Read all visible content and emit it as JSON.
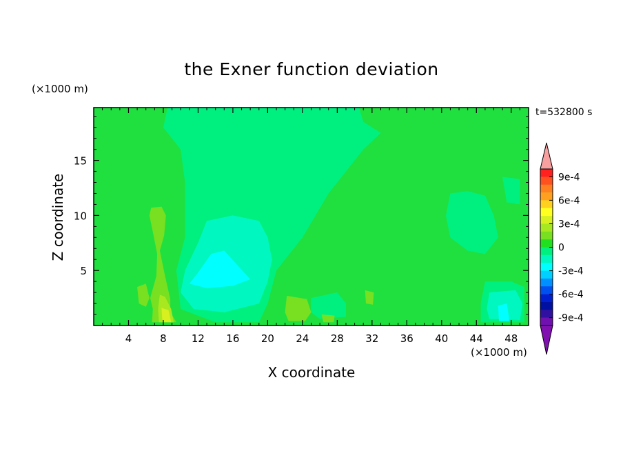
{
  "chart_data": {
    "type": "heatmap",
    "title": "the Exner function deviation",
    "xlabel": "X coordinate",
    "ylabel": "Z coordinate",
    "x_unit": "(×1000 m)",
    "y_unit": "(×1000 m)",
    "time_label": "t=532800 s",
    "xlim": [
      0,
      50
    ],
    "ylim": [
      0,
      19.8
    ],
    "x_ticks": [
      4,
      8,
      12,
      16,
      20,
      24,
      28,
      32,
      36,
      40,
      44,
      48
    ],
    "y_ticks": [
      5,
      10,
      15
    ],
    "colorbar": {
      "tick_labels": [
        "9e-4",
        "6e-4",
        "3e-4",
        "0",
        "-3e-4",
        "-6e-4",
        "-9e-4"
      ],
      "tick_values": [
        0.0009,
        0.0006,
        0.0003,
        0,
        -0.0003,
        -0.0006,
        -0.0009
      ],
      "levels": [
        0.0009,
        0.0008,
        0.0007,
        0.0006,
        0.0005,
        0.0004,
        0.0003,
        0.0002,
        0.0001,
        0,
        -0.0001,
        -0.0002,
        -0.0003,
        -0.0004,
        -0.0005,
        -0.0006,
        -0.0007,
        -0.0008,
        -0.0009
      ],
      "colors": [
        "#ff2020",
        "#ff5020",
        "#ff8020",
        "#ffa020",
        "#ffd020",
        "#ffff20",
        "#d8f020",
        "#a8e820",
        "#78e020",
        "#20e020",
        "#00f080",
        "#00f8c0",
        "#00ffff",
        "#00d0ff",
        "#0090ff",
        "#0050f0",
        "#0020d0",
        "#0010a0",
        "#3010a0",
        "#7010b0"
      ],
      "over_color": "#f8a0a0",
      "under_color": "#8010b0"
    },
    "regions": [
      {
        "level": 0,
        "color": "#20e040",
        "note": "background"
      },
      {
        "level": -0.0001,
        "color": "#00f080",
        "polygon": [
          [
            8.5,
            19.8
          ],
          [
            30.5,
            19.8
          ],
          [
            31,
            18.5
          ],
          [
            33,
            17.5
          ],
          [
            31,
            16
          ],
          [
            27,
            12
          ],
          [
            24,
            8
          ],
          [
            21,
            5
          ],
          [
            20,
            2
          ],
          [
            19,
            0.3
          ],
          [
            14,
            0.3
          ],
          [
            10,
            1.5
          ],
          [
            9.5,
            5
          ],
          [
            10.5,
            8
          ],
          [
            10.5,
            13
          ],
          [
            10,
            16
          ],
          [
            8,
            18
          ]
        ]
      },
      {
        "level": -0.0001,
        "color": "#00f080",
        "polygon": [
          [
            41,
            12
          ],
          [
            43,
            12.2
          ],
          [
            45,
            11.8
          ],
          [
            46,
            10
          ],
          [
            46.5,
            8
          ],
          [
            45,
            6.5
          ],
          [
            43,
            6.8
          ],
          [
            41,
            8
          ],
          [
            40.5,
            10
          ]
        ]
      },
      {
        "level": -0.0001,
        "color": "#00f080",
        "polygon": [
          [
            45,
            4
          ],
          [
            48,
            4
          ],
          [
            49.5,
            3.5
          ],
          [
            49.5,
            0.3
          ],
          [
            44.5,
            0.3
          ],
          [
            44.5,
            2
          ]
        ]
      },
      {
        "level": -0.0001,
        "color": "#00f080",
        "polygon": [
          [
            25,
            2.5
          ],
          [
            28,
            3
          ],
          [
            29,
            2
          ],
          [
            29,
            0.8
          ],
          [
            26,
            0.6
          ],
          [
            25,
            1.2
          ]
        ]
      },
      {
        "level": -0.0001,
        "color": "#00f080",
        "polygon": [
          [
            47,
            13.5
          ],
          [
            49,
            13.3
          ],
          [
            49,
            11
          ],
          [
            47.5,
            11.2
          ]
        ]
      },
      {
        "level": -0.0002,
        "color": "#00f8c0",
        "polygon": [
          [
            13,
            9.5
          ],
          [
            16,
            10
          ],
          [
            19,
            9.5
          ],
          [
            20,
            8
          ],
          [
            20.5,
            6
          ],
          [
            20,
            4
          ],
          [
            19,
            2
          ],
          [
            15,
            1.2
          ],
          [
            11.5,
            1.5
          ],
          [
            10,
            3
          ],
          [
            10.5,
            5
          ],
          [
            12,
            7.5
          ]
        ]
      },
      {
        "level": -0.0002,
        "color": "#00f8c0",
        "polygon": [
          [
            45.5,
            3
          ],
          [
            48.5,
            3.2
          ],
          [
            49.3,
            2
          ],
          [
            49,
            0.5
          ],
          [
            45.5,
            0.6
          ],
          [
            45.2,
            1.5
          ]
        ]
      },
      {
        "level": -0.0003,
        "color": "#00ffff",
        "polygon": [
          [
            13.5,
            6.5
          ],
          [
            15,
            6.8
          ],
          [
            16.5,
            5.5
          ],
          [
            18,
            4.2
          ],
          [
            16,
            3.6
          ],
          [
            13,
            3.4
          ],
          [
            11,
            3.8
          ],
          [
            12,
            4.8
          ]
        ]
      },
      {
        "level": -0.0003,
        "color": "#00ffff",
        "polygon": [
          [
            46.5,
            1.8
          ],
          [
            47.5,
            2
          ],
          [
            47.8,
            0.4
          ],
          [
            46.6,
            0.4
          ]
        ]
      },
      {
        "level": 0.0001,
        "color": "#78e020",
        "polygon": [
          [
            6.6,
            10.7
          ],
          [
            7.8,
            10.8
          ],
          [
            8.3,
            10
          ],
          [
            8.1,
            8.2
          ],
          [
            7.6,
            6.8
          ],
          [
            8.2,
            4.5
          ],
          [
            8.8,
            2.4
          ],
          [
            8.8,
            1.2
          ],
          [
            9.5,
            0.3
          ],
          [
            6.7,
            0.3
          ],
          [
            6.8,
            1.5
          ],
          [
            6.5,
            2.5
          ],
          [
            7.2,
            4.5
          ],
          [
            7.3,
            6.5
          ],
          [
            6.8,
            8.5
          ],
          [
            6.4,
            10
          ]
        ]
      },
      {
        "level": 0.0001,
        "color": "#78e020",
        "polygon": [
          [
            5,
            3.5
          ],
          [
            6,
            3.8
          ],
          [
            6.4,
            2.5
          ],
          [
            6,
            1.7
          ],
          [
            5.2,
            2
          ]
        ]
      },
      {
        "level": 0.0001,
        "color": "#78e020",
        "polygon": [
          [
            22.2,
            2.7
          ],
          [
            24.5,
            2.4
          ],
          [
            25,
            1.2
          ],
          [
            24.3,
            0.4
          ],
          [
            22.4,
            0.4
          ],
          [
            22,
            1.2
          ]
        ]
      },
      {
        "level": 0.0001,
        "color": "#78e020",
        "polygon": [
          [
            26.2,
            1
          ],
          [
            27.7,
            0.9
          ],
          [
            27.6,
            0.3
          ],
          [
            26.4,
            0.3
          ]
        ]
      },
      {
        "level": 0.0001,
        "color": "#78e020",
        "polygon": [
          [
            31.2,
            3.2
          ],
          [
            32.2,
            3
          ],
          [
            32.1,
            1.9
          ],
          [
            31.3,
            2
          ]
        ]
      },
      {
        "level": 0.0002,
        "color": "#a8e820",
        "polygon": [
          [
            7.6,
            2.8
          ],
          [
            8.2,
            2.6
          ],
          [
            8.9,
            1.5
          ],
          [
            9.2,
            0.3
          ],
          [
            7.5,
            0.3
          ],
          [
            7.4,
            1.5
          ]
        ]
      },
      {
        "level": 0.0003,
        "color": "#d8f020",
        "polygon": [
          [
            7.8,
            1.6
          ],
          [
            8.6,
            1.4
          ],
          [
            8.9,
            0.3
          ],
          [
            7.9,
            0.3
          ]
        ]
      }
    ]
  }
}
